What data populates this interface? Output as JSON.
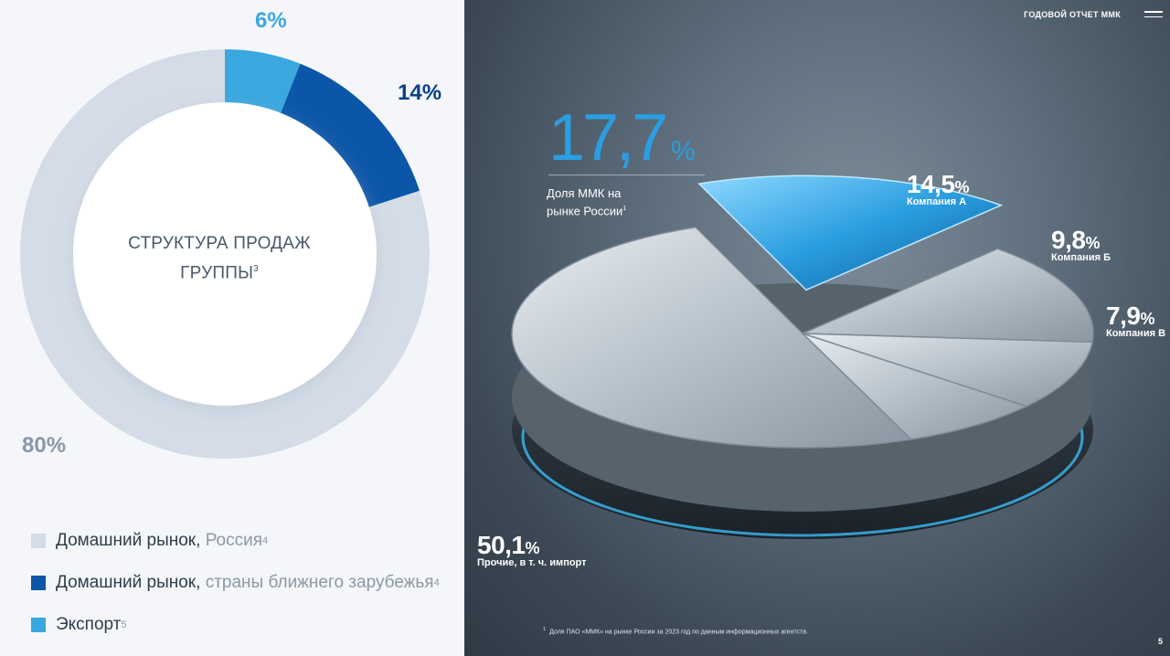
{
  "header": {
    "title": "ГОДОВОЙ ОТЧЕТ ММК",
    "menu_icon": "hamburger-icon"
  },
  "chart_data": [
    {
      "type": "pie",
      "title": "СТРУКТУРА ПРОДАЖ ГРУППЫ",
      "title_note": "3",
      "slices": [
        {
          "label": "Домашний рынок, Россия",
          "value": 80,
          "value_label": "80%",
          "color": "#d3dce7"
        },
        {
          "label": "Домашний рынок, страны ближнего зарубежья",
          "value": 14,
          "value_label": "14%",
          "color": "#0b56a8"
        },
        {
          "label": "Экспорт",
          "value": 6,
          "value_label": "6%",
          "color": "#3aa8df"
        }
      ]
    },
    {
      "type": "pie",
      "title": "Доля ММК на рынке России",
      "title_note": "1",
      "slices": [
        {
          "label": "ММК",
          "value": 17.7,
          "value_text": "17,7",
          "color": "#2a9ee0"
        },
        {
          "label": "Компания А",
          "value": 14.5,
          "value_text": "14,5",
          "color": "#9aa6b0"
        },
        {
          "label": "Компания Б",
          "value": 9.8,
          "value_text": "9,8",
          "color": "#a8b3bc"
        },
        {
          "label": "Компания В",
          "value": 7.9,
          "value_text": "7,9",
          "color": "#b4bec6"
        },
        {
          "label": "Прочие, в т. ч. импорт",
          "value": 50.1,
          "value_text": "50,1",
          "color": "#c3cbd2"
        }
      ]
    }
  ],
  "left": {
    "center_title_line1": "СТРУКТУРА ПРОДАЖ",
    "center_title_line2": "ГРУППЫ",
    "center_title_note": "3",
    "pct_export": "6%",
    "pct_near": "14%",
    "pct_russia": "80%",
    "legend": [
      {
        "main": "Домашний рынок, ",
        "muted": "Россия",
        "note": "4",
        "color": "#d3dce7"
      },
      {
        "main": "Домашний рынок, ",
        "muted": "страны ближнего зарубежья",
        "note": "4",
        "color": "#0b56a8"
      },
      {
        "main": "Экспорт",
        "muted": "",
        "note": "5",
        "color": "#3aa8df"
      }
    ]
  },
  "right": {
    "mmk_value": "17,7",
    "unit": "%",
    "mmk_caption_line1": "Доля ММК на",
    "mmk_caption_line2": "рынке России",
    "mmk_caption_note": "1",
    "company_a_value": "14,5",
    "company_a_name": "Компания А",
    "company_b_value": "9,8",
    "company_b_name": "Компания Б",
    "company_v_value": "7,9",
    "company_v_name": "Компания В",
    "others_value": "50,1",
    "others_name": "Прочие, в т. ч. импорт",
    "footnote_mark": "1",
    "footnote_text": "Доля ПАО «ММК» на рынке России за 2023 год по данным информационных агентств.",
    "page_number": "5"
  }
}
